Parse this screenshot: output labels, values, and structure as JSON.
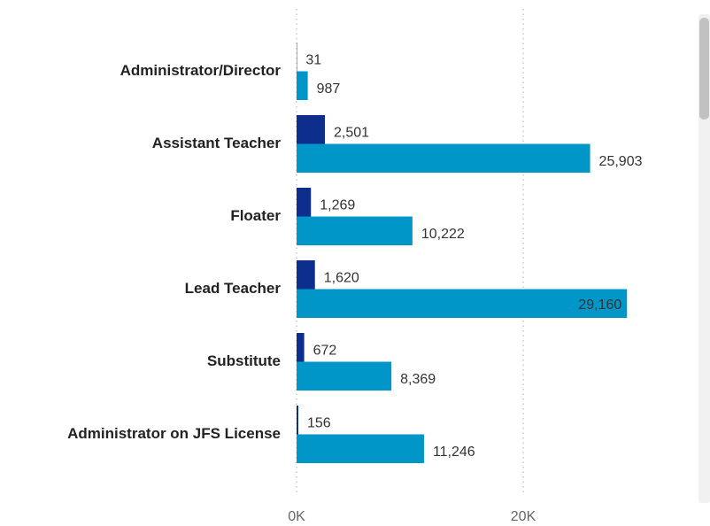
{
  "chart_data": {
    "type": "bar",
    "orientation": "horizontal",
    "categories": [
      "Administrator/Director",
      "Assistant Teacher",
      "Floater",
      "Lead Teacher",
      "Substitute",
      "Administrator on JFS License"
    ],
    "series": [
      {
        "color": "#0d2e8c",
        "values": [
          31,
          2501,
          1269,
          1620,
          672,
          156
        ],
        "value_labels": [
          "31",
          "2,501",
          "1,269",
          "1,620",
          "672",
          "156"
        ]
      },
      {
        "color": "#0096c8",
        "values": [
          987,
          25903,
          10222,
          29160,
          8369,
          11246
        ],
        "value_labels": [
          "987",
          "25,903",
          "10,222",
          "29,160",
          "8,369",
          "11,246"
        ]
      }
    ],
    "xlim": [
      0,
      35000
    ],
    "xticks": [
      {
        "value": 0,
        "label": "0K"
      },
      {
        "value": 20000,
        "label": "20K"
      }
    ],
    "grid": true
  }
}
